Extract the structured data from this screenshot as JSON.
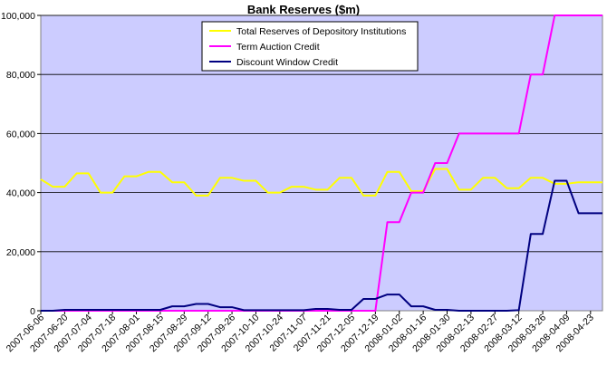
{
  "chart_data": {
    "type": "line",
    "title": "Bank Reserves ($m)",
    "xlabel": "",
    "ylabel": "",
    "ylim": [
      0,
      100000
    ],
    "ytick_labels": [
      "0",
      "20,000",
      "40,000",
      "60,000",
      "80,000",
      "100,000"
    ],
    "ytick_values": [
      0,
      20000,
      40000,
      60000,
      80000,
      100000
    ],
    "grid": true,
    "legend_position": "top-center",
    "plot_background": "#ccccff",
    "x": [
      "2007-06-06",
      "2007-06-13",
      "2007-06-20",
      "2007-06-27",
      "2007-07-04",
      "2007-07-11",
      "2007-07-18",
      "2007-07-25",
      "2007-08-01",
      "2007-08-08",
      "2007-08-15",
      "2007-08-22",
      "2007-08-29",
      "2007-09-05",
      "2007-09-12",
      "2007-09-19",
      "2007-09-26",
      "2007-10-03",
      "2007-10-10",
      "2007-10-17",
      "2007-10-24",
      "2007-10-31",
      "2007-11-07",
      "2007-11-14",
      "2007-11-21",
      "2007-11-28",
      "2007-12-05",
      "2007-12-12",
      "2007-12-19",
      "2007-12-26",
      "2008-01-02",
      "2008-01-09",
      "2008-01-16",
      "2008-01-23",
      "2008-01-30",
      "2008-02-06",
      "2008-02-13",
      "2008-02-20",
      "2008-02-27",
      "2008-03-05",
      "2008-03-12",
      "2008-03-19",
      "2008-03-26",
      "2008-04-02",
      "2008-04-09",
      "2008-04-16",
      "2008-04-23",
      "2008-04-30"
    ],
    "xtick_labels": [
      "2007-06-06",
      "2007-06-20",
      "2007-07-04",
      "2007-07-18",
      "2007-08-01",
      "2007-08-15",
      "2007-08-29",
      "2007-09-12",
      "2007-09-26",
      "2007-10-10",
      "2007-10-24",
      "2007-11-07",
      "2007-11-21",
      "2007-12-05",
      "2007-12-19",
      "2008-01-02",
      "2008-01-16",
      "2008-01-30",
      "2008-02-13",
      "2008-02-27",
      "2008-03-12",
      "2008-03-26",
      "2008-04-09",
      "2008-04-23"
    ],
    "series": [
      {
        "name": "Total Reserves of Depository Institutions",
        "color": "#ffff00",
        "values": [
          44500,
          42000,
          42000,
          46500,
          46500,
          40000,
          40000,
          45500,
          45500,
          47000,
          47000,
          43500,
          43500,
          39000,
          39000,
          45000,
          45000,
          44000,
          44000,
          40000,
          40000,
          42000,
          42000,
          41000,
          41000,
          45000,
          45000,
          39000,
          39000,
          47000,
          47000,
          40500,
          40500,
          48000,
          48000,
          41000,
          41000,
          45000,
          45000,
          41500,
          41500,
          45000,
          45000,
          43000,
          43000,
          43500,
          43500,
          43500
        ]
      },
      {
        "name": "Term Auction Credit",
        "color": "#ff00ff",
        "values": [
          0,
          0,
          0,
          0,
          0,
          0,
          0,
          0,
          0,
          0,
          0,
          0,
          0,
          0,
          0,
          0,
          0,
          0,
          0,
          0,
          0,
          0,
          0,
          0,
          0,
          0,
          0,
          0,
          0,
          30000,
          30000,
          40000,
          40000,
          50000,
          50000,
          60000,
          60000,
          60000,
          60000,
          60000,
          60000,
          80000,
          80000,
          100000,
          100000,
          100000,
          100000,
          100000
        ]
      },
      {
        "name": "Discount Window Credit",
        "color": "#000080",
        "values": [
          0,
          0,
          300,
          300,
          300,
          300,
          300,
          300,
          300,
          300,
          300,
          1500,
          1500,
          2300,
          2300,
          1200,
          1200,
          200,
          200,
          200,
          200,
          200,
          200,
          600,
          600,
          300,
          300,
          4000,
          4000,
          5500,
          5500,
          1500,
          1500,
          300,
          300,
          0,
          0,
          0,
          0,
          0,
          200,
          26000,
          26000,
          44000,
          44000,
          33000,
          33000,
          33000
        ]
      }
    ]
  }
}
